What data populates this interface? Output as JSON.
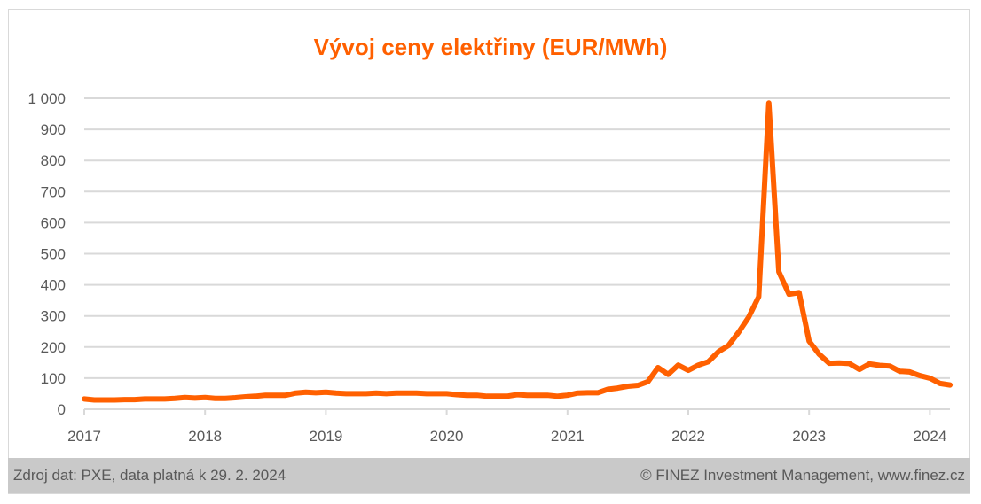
{
  "chart_data": {
    "type": "line",
    "title": "Vývoj ceny elektřiny (EUR/MWh)",
    "xlabel": "",
    "ylabel": "",
    "x_tick_labels": [
      "2017",
      "2018",
      "2019",
      "2020",
      "2021",
      "2022",
      "2023",
      "2024"
    ],
    "y_tick_labels": [
      "0",
      "100",
      "200",
      "300",
      "400",
      "500",
      "600",
      "700",
      "800",
      "900",
      "1 000"
    ],
    "ylim": [
      0,
      1000
    ],
    "grid": true,
    "start": "2017-01",
    "frequency": "monthly",
    "end": "2024-03",
    "series": [
      {
        "name": "Cena elektřiny",
        "color": "#FF6000",
        "values": [
          33,
          30,
          30,
          30,
          31,
          31,
          33,
          33,
          33,
          35,
          38,
          36,
          38,
          35,
          35,
          37,
          40,
          42,
          45,
          45,
          45,
          52,
          55,
          53,
          55,
          52,
          50,
          50,
          50,
          52,
          50,
          52,
          52,
          52,
          50,
          50,
          50,
          47,
          45,
          45,
          42,
          42,
          42,
          47,
          45,
          45,
          45,
          42,
          45,
          52,
          53,
          53,
          64,
          68,
          74,
          77,
          89,
          134,
          112,
          142,
          125,
          142,
          153,
          185,
          205,
          248,
          296,
          362,
          985,
          442,
          370,
          375,
          219,
          177,
          148,
          149,
          147,
          128,
          146,
          141,
          139,
          122,
          120,
          108,
          100,
          83,
          78
        ]
      }
    ]
  },
  "footer": {
    "source": "Zdroj dat: PXE, data platná k 29. 2. 2024",
    "copyright": "© FINEZ Investment Management, www.finez.cz"
  }
}
